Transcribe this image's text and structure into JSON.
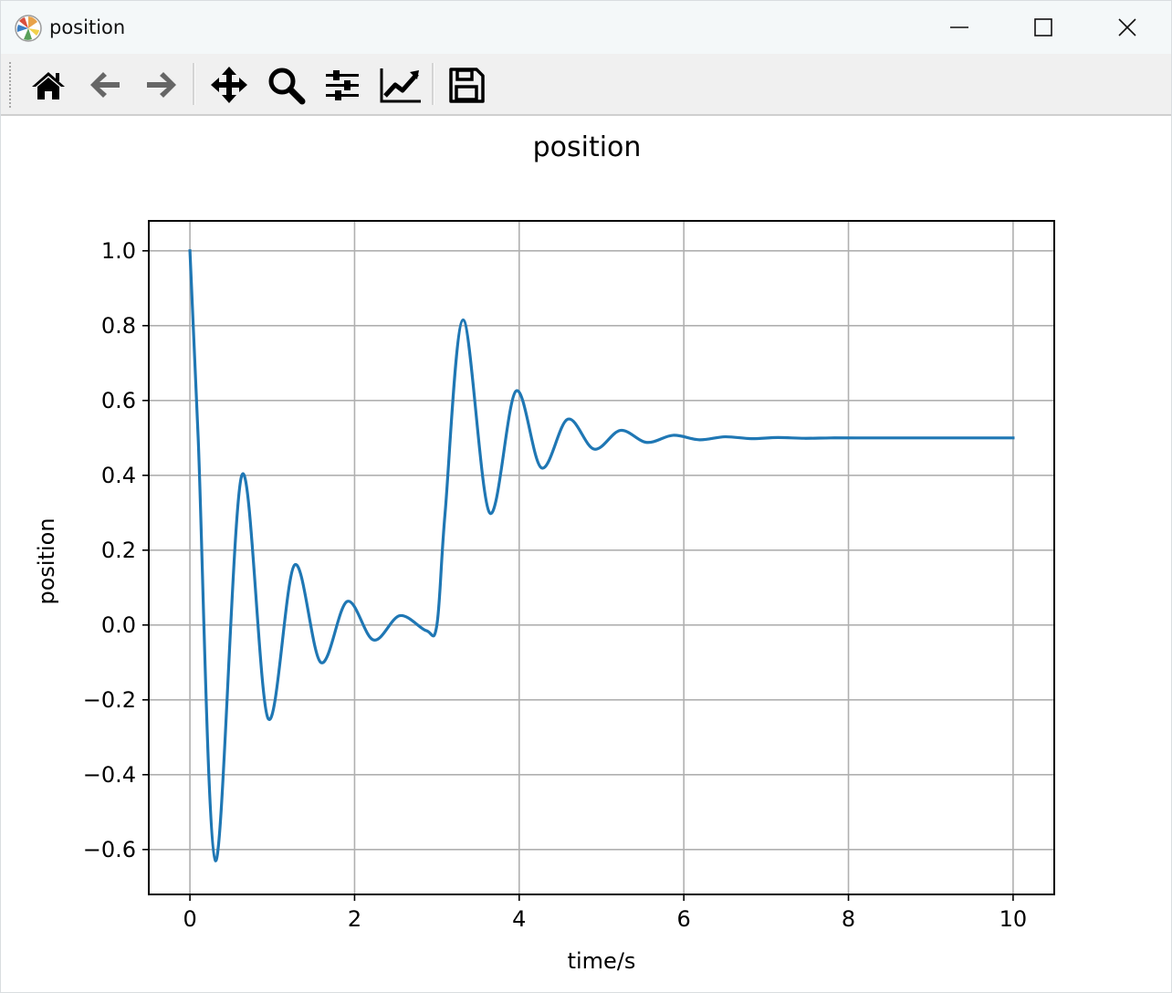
{
  "window": {
    "title": "position",
    "app_icon": "matplotlib-logo-icon",
    "controls": [
      "minimize-icon",
      "maximize-icon",
      "close-icon"
    ]
  },
  "toolbar": {
    "buttons": [
      {
        "name": "home-button",
        "icon": "home-icon"
      },
      {
        "name": "back-button",
        "icon": "arrow-left-icon"
      },
      {
        "name": "forward-button",
        "icon": "arrow-right-icon"
      },
      {
        "name": "pan-button",
        "icon": "move-arrows-icon"
      },
      {
        "name": "zoom-button",
        "icon": "magnifier-icon"
      },
      {
        "name": "configure-subplots-button",
        "icon": "sliders-icon"
      },
      {
        "name": "edit-axis-button",
        "icon": "line-chart-icon"
      },
      {
        "name": "save-button",
        "icon": "floppy-disk-icon"
      }
    ]
  },
  "chart_data": {
    "type": "line",
    "title": "position",
    "xlabel": "time/s",
    "ylabel": "position",
    "xlim": [
      -0.5,
      10.5
    ],
    "ylim": [
      -0.72,
      1.08
    ],
    "xticks": [
      0,
      2,
      4,
      6,
      8,
      10
    ],
    "yticks": [
      1.0,
      0.8,
      0.6,
      0.4,
      0.2,
      0.0,
      -0.2,
      -0.4,
      -0.6
    ],
    "ytick_labels": [
      "1.0",
      "0.8",
      "0.6",
      "0.4",
      "0.2",
      "0.0",
      "−0.2",
      "−0.4",
      "−0.6"
    ],
    "xtick_labels": [
      "0",
      "2",
      "4",
      "6",
      "8",
      "10"
    ],
    "grid": true,
    "line_color": "#1f77b4",
    "series": [
      {
        "x": [
          0,
          0.1,
          0.31,
          0.63,
          0.95,
          1.27,
          1.59,
          1.91,
          2.23,
          2.55,
          2.87,
          3.0,
          3.1,
          3.32,
          3.64,
          3.96,
          4.27,
          4.59,
          4.91,
          5.23,
          5.55,
          5.87,
          6.19,
          6.5,
          6.82,
          7.14,
          7.46,
          7.78,
          8.1,
          10.0
        ],
        "y": [
          1.0,
          0.5,
          -0.63,
          0.4,
          -0.25,
          0.16,
          -0.1,
          0.063,
          -0.04,
          0.025,
          -0.015,
          0.0,
          0.3,
          0.815,
          0.3,
          0.625,
          0.42,
          0.55,
          0.47,
          0.52,
          0.488,
          0.507,
          0.495,
          0.503,
          0.498,
          0.501,
          0.499,
          0.5,
          0.5,
          0.5
        ]
      }
    ]
  }
}
